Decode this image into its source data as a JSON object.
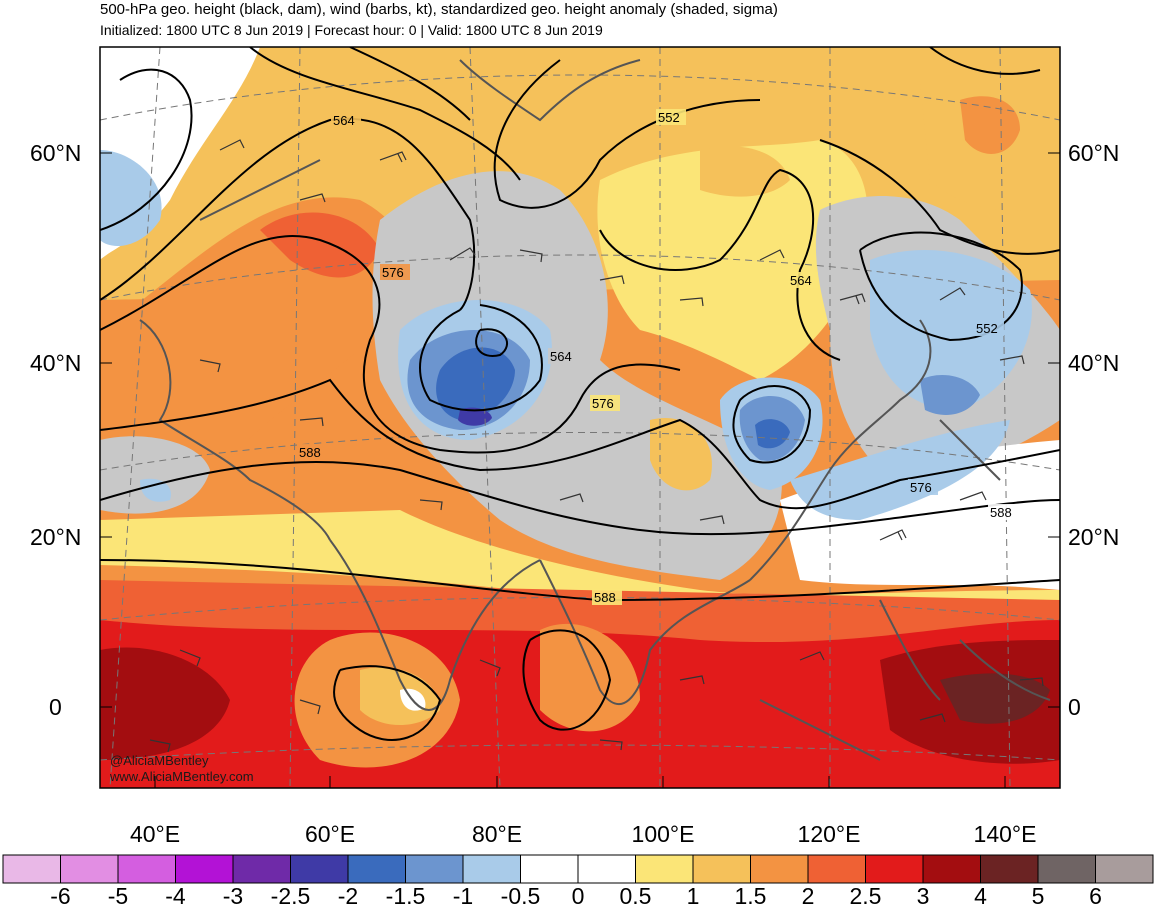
{
  "header": {
    "title": "500-hPa geo. height (black, dam), wind (barbs, kt), standardized geo. height anomaly (shaded, sigma)",
    "subtitle": "Initialized: 1800 UTC 8 Jun 2019 | Forecast hour: 0 | Valid: 1800 UTC 8 Jun 2019"
  },
  "map": {
    "lat_labels": [
      "60°N",
      "40°N",
      "20°N",
      "0"
    ],
    "lon_labels": [
      "40°E",
      "60°E",
      "80°E",
      "100°E",
      "120°E",
      "140°E"
    ],
    "contour_labels": [
      "564",
      "552",
      "576",
      "564",
      "552",
      "564",
      "576",
      "588",
      "576",
      "588",
      "588"
    ],
    "credits": [
      "@AliciaMBentley",
      "www.AliciaMBentley.com"
    ]
  },
  "colorbar": {
    "colors": [
      "#e9b8e7",
      "#e28ee3",
      "#d45ee0",
      "#b312d6",
      "#6f2aa8",
      "#3f3aa6",
      "#3a6bbd",
      "#6c95cf",
      "#a9cbe9",
      "#ffffff",
      "#ffffff",
      "#fbe577",
      "#f5c15a",
      "#f39342",
      "#ef6134",
      "#e21b1b",
      "#a30d10",
      "#6b2323",
      "#6f6464",
      "#a89c9c"
    ],
    "labels": [
      "-6",
      "-5",
      "-4",
      "-3",
      "-2.5",
      "-2",
      "-1.5",
      "-1",
      "-0.5",
      "0",
      "0.5",
      "1",
      "1.5",
      "2",
      "2.5",
      "3",
      "4",
      "5",
      "6"
    ]
  },
  "legend_colors": {
    "gray": "#c8c8c8",
    "coast": "#555555",
    "contour": "#000000",
    "grid": "#777777"
  }
}
